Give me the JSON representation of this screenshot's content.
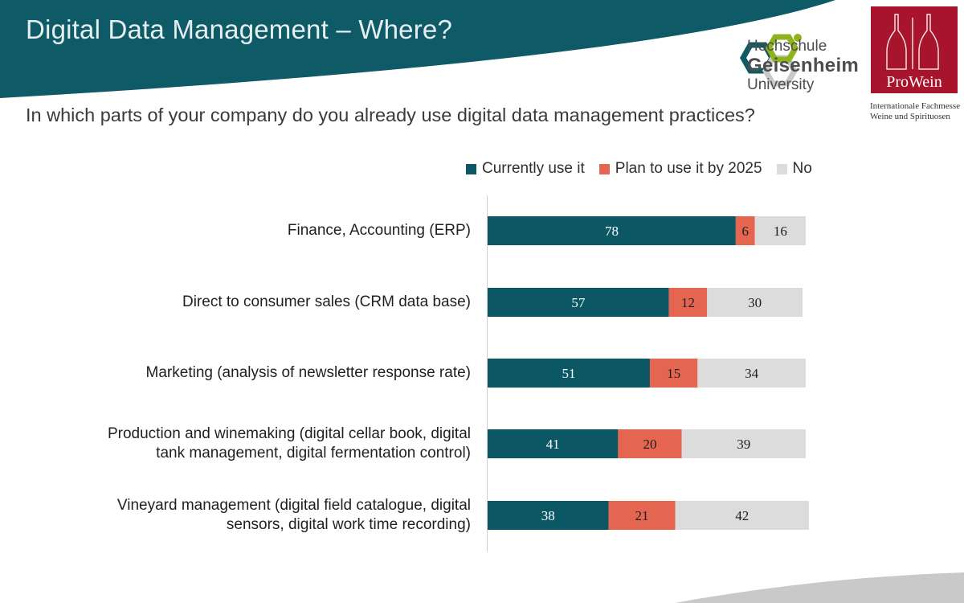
{
  "slide": {
    "title": "Digital Data Management – Where?",
    "question": "In which parts of your company do you already use digital data management practices?"
  },
  "logos": {
    "hgu": {
      "line1": "Hochschule",
      "line2": "Geisenheim",
      "line3": "University"
    },
    "prowein": {
      "wordmark": "ProWein",
      "caption_line1": "Internationale Fachmesse",
      "caption_line2": "Weine und Spirituosen"
    }
  },
  "colors": {
    "header_teal": "#0e5a67",
    "current": "#0c5764",
    "plan": "#e46550",
    "no": "#dcdcdc",
    "prowein_red": "#a7142b"
  },
  "chart_data": {
    "type": "bar",
    "orientation": "horizontal",
    "stacked": true,
    "categories": [
      "Finance, Accounting (ERP)",
      "Direct to consumer sales (CRM data base)",
      "Marketing (analysis of newsletter response rate)",
      "Production and winemaking (digital cellar book, digital tank management, digital fermentation control)",
      "Vineyard management (digital field catalogue, digital sensors, digital work time recording)"
    ],
    "category_lines": [
      [
        "Finance, Accounting (ERP)"
      ],
      [
        "Direct to consumer sales (CRM data base)"
      ],
      [
        "Marketing (analysis of newsletter response rate)"
      ],
      [
        "Production and winemaking (digital cellar book, digital",
        "tank management, digital fermentation control)"
      ],
      [
        "Vineyard management (digital field catalogue, digital",
        "sensors, digital work time recording)"
      ]
    ],
    "series": [
      {
        "name": "Currently use it",
        "color": "#0c5764",
        "label_color": "#ffffff",
        "values": [
          78,
          57,
          51,
          41,
          38
        ]
      },
      {
        "name": "Plan to use it by 2025",
        "color": "#e46550",
        "label_color": "#1f1f1f",
        "values": [
          6,
          12,
          15,
          20,
          21
        ]
      },
      {
        "name": "No",
        "color": "#dcdcdc",
        "label_color": "#1f1f1f",
        "values": [
          16,
          30,
          34,
          39,
          42
        ]
      }
    ],
    "xlim": [
      0,
      100
    ],
    "legend_position": "top",
    "grid": false
  }
}
